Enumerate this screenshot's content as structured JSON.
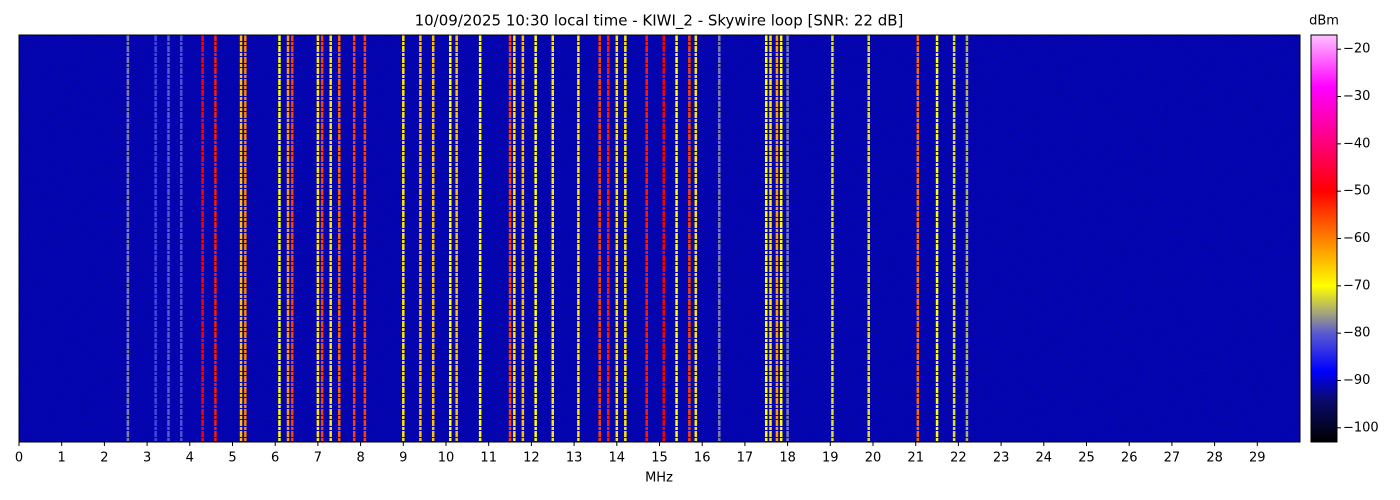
{
  "chart_data": {
    "type": "waterfall",
    "title": "10/09/2025 10:30 local time - KIWI_2 - Skywire loop [SNR: 22 dB]",
    "xlabel": "MHz",
    "colorbar_label": "dBm",
    "xlim": [
      0,
      30
    ],
    "xticks": [
      0,
      1,
      2,
      3,
      4,
      5,
      6,
      7,
      8,
      9,
      10,
      11,
      12,
      13,
      14,
      15,
      16,
      17,
      18,
      19,
      20,
      21,
      22,
      23,
      24,
      25,
      26,
      27,
      28,
      29
    ],
    "clim": [
      -103,
      -17
    ],
    "cticks": [
      {
        "value": -100,
        "label": "−100"
      },
      {
        "value": -90,
        "label": "−90"
      },
      {
        "value": -80,
        "label": "−80"
      },
      {
        "value": -70,
        "label": "−70"
      },
      {
        "value": -60,
        "label": "−60"
      },
      {
        "value": -50,
        "label": "−50"
      },
      {
        "value": -40,
        "label": "−40"
      },
      {
        "value": -30,
        "label": "−30"
      },
      {
        "value": -20,
        "label": "−20"
      }
    ],
    "colormap": [
      {
        "value": -103,
        "color": "#000000"
      },
      {
        "value": -94,
        "color": "#0a0a70"
      },
      {
        "value": -88,
        "color": "#0000ff"
      },
      {
        "value": -80,
        "color": "#5a5ad0"
      },
      {
        "value": -76,
        "color": "#a0a080"
      },
      {
        "value": -70,
        "color": "#ffff00"
      },
      {
        "value": -60,
        "color": "#ff8000"
      },
      {
        "value": -50,
        "color": "#ff0000"
      },
      {
        "value": -38,
        "color": "#ff0090"
      },
      {
        "value": -28,
        "color": "#ff00ff"
      },
      {
        "value": -17,
        "color": "#ffc0ff"
      }
    ],
    "noise_floor": -91,
    "x": [
      2.55,
      3.2,
      3.5,
      3.8,
      4.3,
      4.6,
      5.2,
      5.3,
      6.1,
      6.3,
      6.4,
      7.0,
      7.1,
      7.3,
      7.5,
      7.85,
      8.1,
      9.0,
      9.4,
      9.7,
      10.1,
      10.25,
      10.8,
      11.5,
      11.6,
      11.8,
      12.1,
      12.5,
      13.1,
      13.6,
      13.8,
      14.0,
      14.2,
      14.7,
      15.1,
      15.4,
      15.7,
      15.85,
      16.4,
      17.5,
      17.6,
      17.75,
      17.85,
      18.0,
      19.05,
      19.9,
      21.05,
      21.5,
      21.9,
      22.2
    ],
    "values": [
      -78,
      -82,
      -80,
      -81,
      -50,
      -52,
      -65,
      -60,
      -70,
      -62,
      -55,
      -68,
      -55,
      -68,
      -58,
      -55,
      -55,
      -68,
      -65,
      -65,
      -70,
      -65,
      -70,
      -55,
      -68,
      -65,
      -70,
      -68,
      -68,
      -55,
      -52,
      -68,
      -68,
      -52,
      -50,
      -70,
      -55,
      -68,
      -78,
      -70,
      -68,
      -62,
      -70,
      -78,
      -72,
      -72,
      -58,
      -70,
      -72,
      -75
    ]
  }
}
